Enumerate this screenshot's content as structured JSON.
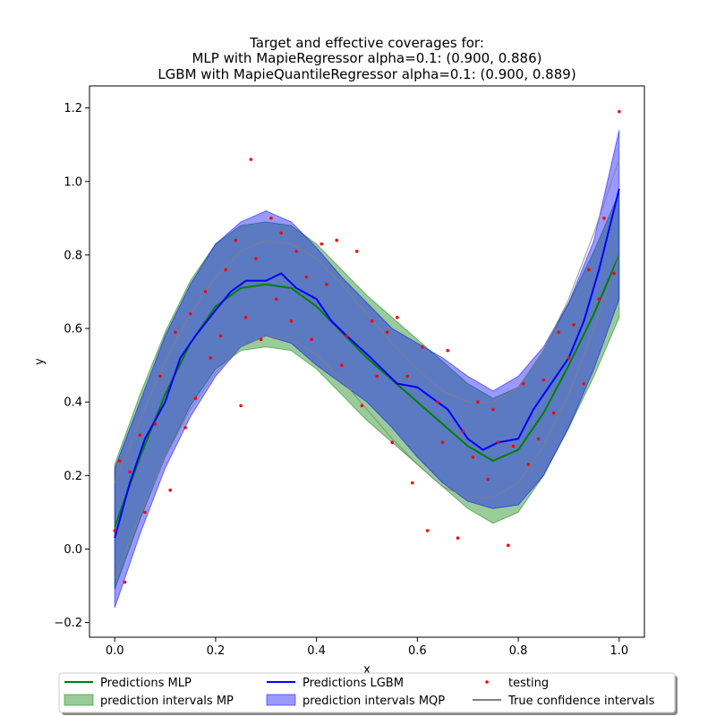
{
  "chart_data": {
    "type": "line",
    "title_lines": [
      "Target and effective coverages for:",
      "MLP with MapieRegressor alpha=0.1: (0.900, 0.886)",
      "LGBM with MapieQuantileRegressor alpha=0.1: (0.900, 0.889)"
    ],
    "xlabel": "x",
    "ylabel": "y",
    "xlim": [
      -0.05,
      1.05
    ],
    "ylim": [
      -0.24,
      1.26
    ],
    "x_ticks": [
      "0.0",
      "0.2",
      "0.4",
      "0.6",
      "0.8",
      "1.0"
    ],
    "y_ticks": [
      "−0.2",
      "0.0",
      "0.2",
      "0.4",
      "0.6",
      "0.8",
      "1.0",
      "1.2"
    ],
    "grid": false,
    "legend_placement": "bottom-center",
    "legend": [
      {
        "label": "Predictions MLP",
        "kind": "line",
        "color": "#008000"
      },
      {
        "label": "Predictions LGBM",
        "kind": "line",
        "color": "#0000ff"
      },
      {
        "label": "testing",
        "kind": "dots",
        "color": "#ff0000"
      },
      {
        "label": "prediction intervals MP",
        "kind": "patch",
        "color": "#008000"
      },
      {
        "label": "prediction intervals MQP",
        "kind": "patch",
        "color": "#0000ff"
      },
      {
        "label": "True confidence intervals",
        "kind": "line",
        "color": "#808080"
      }
    ],
    "series": [
      {
        "name": "Predictions MLP",
        "color": "#008000",
        "x": [
          0.0,
          0.05,
          0.1,
          0.15,
          0.2,
          0.25,
          0.3,
          0.35,
          0.4,
          0.45,
          0.5,
          0.55,
          0.6,
          0.65,
          0.7,
          0.75,
          0.8,
          0.85,
          0.9,
          0.95,
          1.0
        ],
        "y": [
          0.06,
          0.25,
          0.42,
          0.56,
          0.66,
          0.71,
          0.72,
          0.71,
          0.66,
          0.59,
          0.52,
          0.46,
          0.4,
          0.34,
          0.28,
          0.24,
          0.27,
          0.37,
          0.5,
          0.64,
          0.8
        ]
      },
      {
        "name": "Predictions LGBM",
        "color": "#0000ff",
        "x": [
          0.0,
          0.03,
          0.06,
          0.1,
          0.13,
          0.16,
          0.2,
          0.23,
          0.26,
          0.3,
          0.33,
          0.36,
          0.4,
          0.43,
          0.46,
          0.5,
          0.53,
          0.56,
          0.6,
          0.63,
          0.66,
          0.7,
          0.73,
          0.76,
          0.8,
          0.83,
          0.86,
          0.9,
          0.93,
          0.96,
          1.0
        ],
        "y": [
          0.03,
          0.18,
          0.3,
          0.4,
          0.52,
          0.58,
          0.65,
          0.7,
          0.73,
          0.73,
          0.75,
          0.71,
          0.68,
          0.62,
          0.58,
          0.53,
          0.49,
          0.45,
          0.44,
          0.41,
          0.38,
          0.3,
          0.27,
          0.29,
          0.3,
          0.38,
          0.44,
          0.52,
          0.62,
          0.76,
          0.98
        ]
      },
      {
        "name": "prediction intervals MP",
        "color": "#008000",
        "kind": "band",
        "x": [
          0.0,
          0.05,
          0.1,
          0.15,
          0.2,
          0.25,
          0.3,
          0.35,
          0.4,
          0.45,
          0.5,
          0.55,
          0.6,
          0.65,
          0.7,
          0.75,
          0.8,
          0.85,
          0.9,
          0.95,
          1.0
        ],
        "lower": [
          -0.11,
          0.08,
          0.25,
          0.39,
          0.49,
          0.54,
          0.55,
          0.54,
          0.49,
          0.42,
          0.35,
          0.29,
          0.23,
          0.17,
          0.11,
          0.07,
          0.1,
          0.2,
          0.33,
          0.47,
          0.63
        ],
        "upper": [
          0.23,
          0.42,
          0.59,
          0.73,
          0.83,
          0.88,
          0.89,
          0.88,
          0.83,
          0.76,
          0.69,
          0.63,
          0.57,
          0.51,
          0.45,
          0.41,
          0.44,
          0.54,
          0.67,
          0.81,
          0.97
        ]
      },
      {
        "name": "prediction intervals MQP",
        "color": "#0000ff",
        "kind": "band",
        "x": [
          0.0,
          0.05,
          0.1,
          0.15,
          0.2,
          0.25,
          0.3,
          0.35,
          0.4,
          0.45,
          0.5,
          0.55,
          0.6,
          0.65,
          0.7,
          0.75,
          0.8,
          0.85,
          0.9,
          0.95,
          1.0
        ],
        "lower": [
          -0.16,
          0.04,
          0.22,
          0.36,
          0.47,
          0.55,
          0.58,
          0.56,
          0.5,
          0.45,
          0.4,
          0.33,
          0.25,
          0.18,
          0.13,
          0.11,
          0.12,
          0.2,
          0.33,
          0.49,
          0.68
        ],
        "upper": [
          0.22,
          0.4,
          0.58,
          0.72,
          0.83,
          0.89,
          0.92,
          0.89,
          0.82,
          0.74,
          0.67,
          0.6,
          0.56,
          0.52,
          0.47,
          0.43,
          0.47,
          0.55,
          0.67,
          0.84,
          1.14
        ]
      },
      {
        "name": "True confidence intervals",
        "color": "#808080",
        "kind": "bounds",
        "x": [
          0.0,
          0.05,
          0.1,
          0.15,
          0.2,
          0.25,
          0.3,
          0.35,
          0.4,
          0.45,
          0.5,
          0.55,
          0.6,
          0.65,
          0.7,
          0.75,
          0.8,
          0.85,
          0.9,
          0.95,
          1.0
        ],
        "lower": [
          -0.08,
          0.09,
          0.25,
          0.38,
          0.48,
          0.55,
          0.58,
          0.57,
          0.53,
          0.46,
          0.38,
          0.3,
          0.23,
          0.17,
          0.14,
          0.14,
          0.18,
          0.28,
          0.42,
          0.6,
          0.8
        ],
        "upper": [
          0.18,
          0.35,
          0.51,
          0.64,
          0.74,
          0.81,
          0.84,
          0.83,
          0.79,
          0.72,
          0.64,
          0.56,
          0.49,
          0.43,
          0.4,
          0.4,
          0.44,
          0.54,
          0.68,
          0.86,
          1.06
        ]
      },
      {
        "name": "testing",
        "color": "#ff0000",
        "kind": "scatter",
        "x": [
          0.0,
          0.01,
          0.02,
          0.03,
          0.05,
          0.06,
          0.08,
          0.09,
          0.11,
          0.12,
          0.14,
          0.15,
          0.16,
          0.18,
          0.19,
          0.21,
          0.22,
          0.24,
          0.25,
          0.26,
          0.27,
          0.28,
          0.29,
          0.31,
          0.32,
          0.33,
          0.35,
          0.36,
          0.38,
          0.39,
          0.41,
          0.42,
          0.44,
          0.45,
          0.46,
          0.48,
          0.49,
          0.51,
          0.52,
          0.54,
          0.55,
          0.56,
          0.58,
          0.59,
          0.61,
          0.62,
          0.64,
          0.65,
          0.66,
          0.68,
          0.69,
          0.71,
          0.72,
          0.74,
          0.75,
          0.76,
          0.78,
          0.79,
          0.81,
          0.82,
          0.84,
          0.85,
          0.87,
          0.88,
          0.9,
          0.91,
          0.93,
          0.94,
          0.96,
          0.97,
          0.99,
          1.0
        ],
        "y": [
          0.05,
          0.24,
          -0.09,
          0.21,
          0.31,
          0.1,
          0.34,
          0.47,
          0.16,
          0.59,
          0.33,
          0.64,
          0.41,
          0.7,
          0.52,
          0.58,
          0.76,
          0.84,
          0.39,
          0.63,
          1.06,
          0.79,
          0.57,
          0.9,
          0.68,
          0.86,
          0.62,
          0.81,
          0.74,
          0.57,
          0.83,
          0.72,
          0.84,
          0.5,
          0.58,
          0.81,
          0.39,
          0.62,
          0.47,
          0.59,
          0.29,
          0.63,
          0.47,
          0.18,
          0.55,
          0.05,
          0.4,
          0.29,
          0.54,
          0.03,
          0.32,
          0.25,
          0.4,
          0.19,
          0.38,
          0.29,
          0.01,
          0.28,
          0.45,
          0.23,
          0.3,
          0.46,
          0.37,
          0.59,
          0.52,
          0.61,
          0.45,
          0.76,
          0.68,
          0.9,
          0.75,
          1.19
        ]
      }
    ]
  }
}
